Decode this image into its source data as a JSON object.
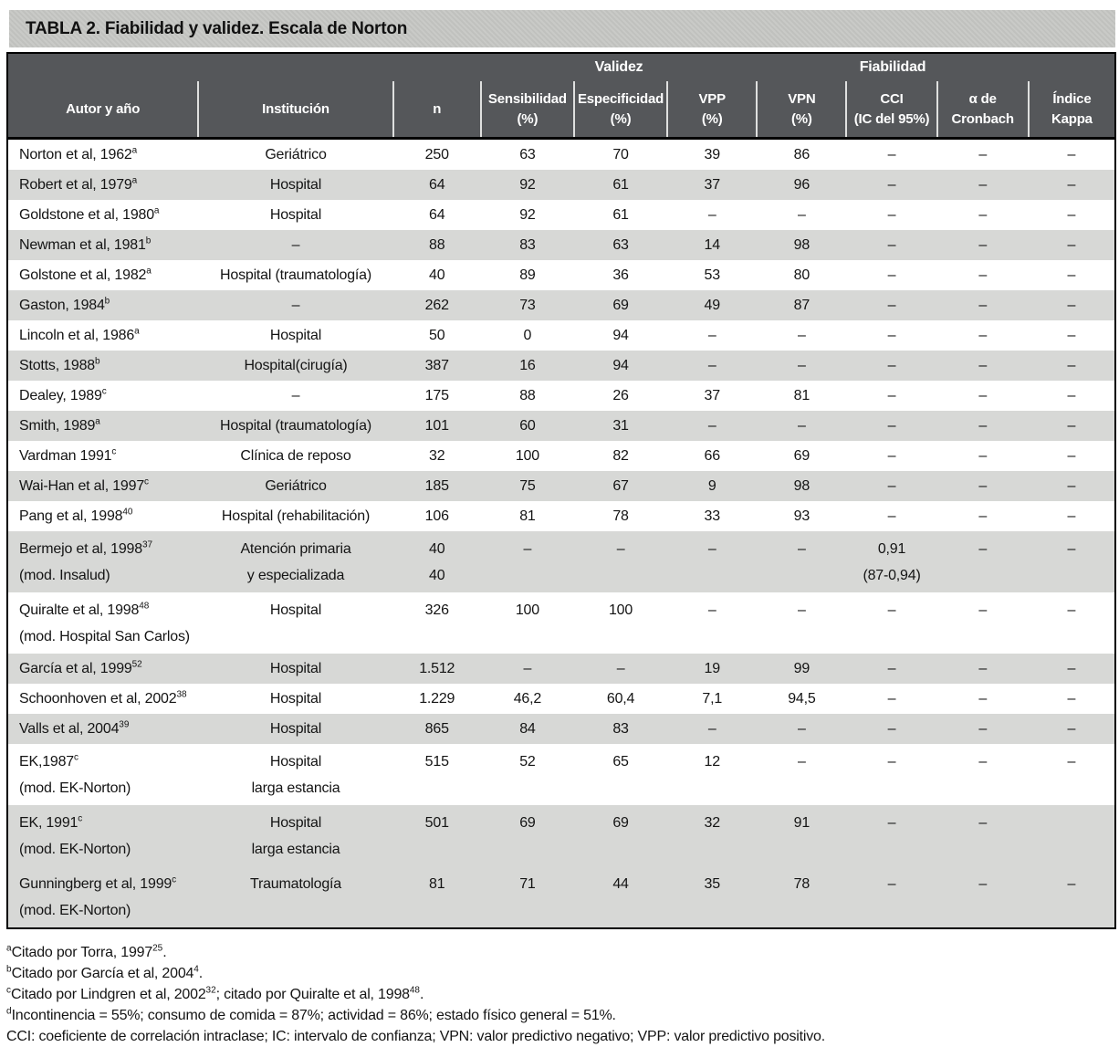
{
  "title": "TABLA 2. Fiabilidad y validez. Escala de Norton",
  "colors": {
    "title_bar_bg": "#c6c7c4",
    "header_bg": "#55575a",
    "header_text": "#ffffff",
    "row_shade": "#d7d8d6",
    "border": "#000000",
    "body_text": "#141414"
  },
  "table": {
    "group_headers": [
      {
        "label": "",
        "span": 3
      },
      {
        "label": "Validez",
        "span": 3
      },
      {
        "label": "Fiabilidad",
        "span": 3
      },
      {
        "label": "",
        "span": 1
      }
    ],
    "columns": [
      {
        "id": "author",
        "lines": [
          "Autor y año"
        ]
      },
      {
        "id": "institucion",
        "lines": [
          "Institución"
        ]
      },
      {
        "id": "n",
        "lines": [
          "n"
        ]
      },
      {
        "id": "sensibilidad",
        "lines": [
          "Sensibilidad",
          "(%)"
        ]
      },
      {
        "id": "especificidad",
        "lines": [
          "Especificidad",
          "(%)"
        ]
      },
      {
        "id": "vpp",
        "lines": [
          "VPP",
          "(%)"
        ]
      },
      {
        "id": "vpn",
        "lines": [
          "VPN",
          "(%)"
        ]
      },
      {
        "id": "cci",
        "lines": [
          "CCI",
          "(IC del 95%)"
        ]
      },
      {
        "id": "cronbach",
        "lines": [
          "α de",
          "Cronbach"
        ]
      },
      {
        "id": "kappa",
        "lines": [
          "Índice",
          "Kappa"
        ]
      }
    ],
    "rows": [
      {
        "shaded": false,
        "two_line": false,
        "author": [
          "Norton et al, 1962^{a}"
        ],
        "institution": [
          "Geriátrico"
        ],
        "cells": [
          [
            "250"
          ],
          [
            "63"
          ],
          [
            "70"
          ],
          [
            "39"
          ],
          [
            "86"
          ],
          [
            "–"
          ],
          [
            "–"
          ],
          [
            "–"
          ]
        ]
      },
      {
        "shaded": true,
        "two_line": false,
        "author": [
          "Robert et al, 1979^{a}"
        ],
        "institution": [
          "Hospital"
        ],
        "cells": [
          [
            "64"
          ],
          [
            "92"
          ],
          [
            "61"
          ],
          [
            "37"
          ],
          [
            "96"
          ],
          [
            "–"
          ],
          [
            "–"
          ],
          [
            "–"
          ]
        ]
      },
      {
        "shaded": false,
        "two_line": false,
        "author": [
          "Goldstone et al, 1980^{a}"
        ],
        "institution": [
          "Hospital"
        ],
        "cells": [
          [
            "64"
          ],
          [
            "92"
          ],
          [
            "61"
          ],
          [
            "–"
          ],
          [
            "–"
          ],
          [
            "–"
          ],
          [
            "–"
          ],
          [
            "–"
          ]
        ]
      },
      {
        "shaded": true,
        "two_line": false,
        "author": [
          "Newman et al, 1981^{b}"
        ],
        "institution": [
          "–"
        ],
        "cells": [
          [
            "88"
          ],
          [
            "83"
          ],
          [
            "63"
          ],
          [
            "14"
          ],
          [
            "98"
          ],
          [
            "–"
          ],
          [
            "–"
          ],
          [
            "–"
          ]
        ]
      },
      {
        "shaded": false,
        "two_line": false,
        "author": [
          "Golstone et al, 1982^{a}"
        ],
        "institution": [
          "Hospital (traumatología)"
        ],
        "cells": [
          [
            "40"
          ],
          [
            "89"
          ],
          [
            "36"
          ],
          [
            "53"
          ],
          [
            "80"
          ],
          [
            "–"
          ],
          [
            "–"
          ],
          [
            "–"
          ]
        ]
      },
      {
        "shaded": true,
        "two_line": false,
        "author": [
          "Gaston, 1984^{b}"
        ],
        "institution": [
          "–"
        ],
        "cells": [
          [
            "262"
          ],
          [
            "73"
          ],
          [
            "69"
          ],
          [
            "49"
          ],
          [
            "87"
          ],
          [
            "–"
          ],
          [
            "–"
          ],
          [
            "–"
          ]
        ]
      },
      {
        "shaded": false,
        "two_line": false,
        "author": [
          "Lincoln et al, 1986^{a}"
        ],
        "institution": [
          "Hospital"
        ],
        "cells": [
          [
            "50"
          ],
          [
            "0"
          ],
          [
            "94"
          ],
          [
            "–"
          ],
          [
            "–"
          ],
          [
            "–"
          ],
          [
            "–"
          ],
          [
            "–"
          ]
        ]
      },
      {
        "shaded": true,
        "two_line": false,
        "author": [
          "Stotts, 1988^{b}"
        ],
        "institution": [
          "Hospital(cirugía)"
        ],
        "cells": [
          [
            "387"
          ],
          [
            "16"
          ],
          [
            "94"
          ],
          [
            "–"
          ],
          [
            "–"
          ],
          [
            "–"
          ],
          [
            "–"
          ],
          [
            "–"
          ]
        ]
      },
      {
        "shaded": false,
        "two_line": false,
        "author": [
          "Dealey, 1989^{c}"
        ],
        "institution": [
          "–"
        ],
        "cells": [
          [
            "175"
          ],
          [
            "88"
          ],
          [
            "26"
          ],
          [
            "37"
          ],
          [
            "81"
          ],
          [
            "–"
          ],
          [
            "–"
          ],
          [
            "–"
          ]
        ]
      },
      {
        "shaded": true,
        "two_line": false,
        "author": [
          "Smith, 1989^{a}"
        ],
        "institution": [
          "Hospital (traumatología)"
        ],
        "cells": [
          [
            "101"
          ],
          [
            "60"
          ],
          [
            "31"
          ],
          [
            "–"
          ],
          [
            "–"
          ],
          [
            "–"
          ],
          [
            "–"
          ],
          [
            "–"
          ]
        ]
      },
      {
        "shaded": false,
        "two_line": false,
        "author": [
          "Vardman 1991^{c}"
        ],
        "institution": [
          "Clínica de reposo"
        ],
        "cells": [
          [
            "32"
          ],
          [
            "100"
          ],
          [
            "82"
          ],
          [
            "66"
          ],
          [
            "69"
          ],
          [
            "–"
          ],
          [
            "–"
          ],
          [
            "–"
          ]
        ]
      },
      {
        "shaded": true,
        "two_line": false,
        "author": [
          "Wai-Han et al, 1997^{c}"
        ],
        "institution": [
          "Geriátrico"
        ],
        "cells": [
          [
            "185"
          ],
          [
            "75"
          ],
          [
            "67"
          ],
          [
            "9"
          ],
          [
            "98"
          ],
          [
            "–"
          ],
          [
            "–"
          ],
          [
            "–"
          ]
        ]
      },
      {
        "shaded": false,
        "two_line": false,
        "author": [
          "Pang et al, 1998^{40}"
        ],
        "institution": [
          "Hospital (rehabilitación)"
        ],
        "cells": [
          [
            "106"
          ],
          [
            "81"
          ],
          [
            "78"
          ],
          [
            "33"
          ],
          [
            "93"
          ],
          [
            "–"
          ],
          [
            "–"
          ],
          [
            "–"
          ]
        ]
      },
      {
        "shaded": true,
        "two_line": true,
        "author": [
          "Bermejo et al, 1998^{37}",
          "(mod. Insalud)"
        ],
        "institution": [
          "Atención primaria",
          "y especializada"
        ],
        "cells": [
          [
            "40",
            "40"
          ],
          [
            "–"
          ],
          [
            "–"
          ],
          [
            "–"
          ],
          [
            "–"
          ],
          [
            "0,91",
            "(87-0,94)"
          ],
          [
            "–"
          ],
          [
            "–"
          ]
        ]
      },
      {
        "shaded": false,
        "two_line": true,
        "author": [
          "Quiralte et al, 1998^{48}",
          "(mod. Hospital San Carlos)"
        ],
        "institution": [
          "Hospital"
        ],
        "cells": [
          [
            "326"
          ],
          [
            "100"
          ],
          [
            "100"
          ],
          [
            "–"
          ],
          [
            "–"
          ],
          [
            "–"
          ],
          [
            "–"
          ],
          [
            "–"
          ]
        ]
      },
      {
        "shaded": true,
        "two_line": false,
        "author": [
          "García et al, 1999^{52}"
        ],
        "institution": [
          "Hospital"
        ],
        "cells": [
          [
            "1.512"
          ],
          [
            "–"
          ],
          [
            "–"
          ],
          [
            "19"
          ],
          [
            "99"
          ],
          [
            "–"
          ],
          [
            "–"
          ],
          [
            "–"
          ]
        ]
      },
      {
        "shaded": false,
        "two_line": false,
        "author": [
          "Schoonhoven et al, 2002^{38}"
        ],
        "institution": [
          "Hospital"
        ],
        "cells": [
          [
            "1.229"
          ],
          [
            "46,2"
          ],
          [
            "60,4"
          ],
          [
            "7,1"
          ],
          [
            "94,5"
          ],
          [
            "–"
          ],
          [
            "–"
          ],
          [
            "–"
          ]
        ]
      },
      {
        "shaded": true,
        "two_line": false,
        "author": [
          "Valls et al, 2004^{39}"
        ],
        "institution": [
          "Hospital"
        ],
        "cells": [
          [
            "865"
          ],
          [
            "84"
          ],
          [
            "83"
          ],
          [
            "–"
          ],
          [
            "–"
          ],
          [
            "–"
          ],
          [
            "–"
          ],
          [
            "–"
          ]
        ]
      },
      {
        "shaded": false,
        "two_line": true,
        "author": [
          "EK,1987^{c}",
          "(mod. EK-Norton)"
        ],
        "institution": [
          "Hospital",
          "larga estancia"
        ],
        "cells": [
          [
            "515"
          ],
          [
            "52"
          ],
          [
            "65"
          ],
          [
            "12"
          ],
          [
            "–"
          ],
          [
            "–"
          ],
          [
            "–"
          ],
          [
            "–"
          ]
        ]
      },
      {
        "shaded": true,
        "two_line": true,
        "author": [
          "EK, 1991^{c}",
          "(mod. EK-Norton)"
        ],
        "institution": [
          "Hospital",
          "larga estancia"
        ],
        "cells": [
          [
            "501"
          ],
          [
            "69"
          ],
          [
            "69"
          ],
          [
            "32"
          ],
          [
            "91"
          ],
          [
            "–"
          ],
          [
            "–"
          ],
          [
            ""
          ]
        ]
      },
      {
        "shaded": true,
        "two_line": true,
        "author": [
          "Gunningberg et al, 1999^{c}",
          "(mod. EK-Norton)"
        ],
        "institution": [
          "Traumatología"
        ],
        "cells": [
          [
            "81"
          ],
          [
            "71"
          ],
          [
            "44"
          ],
          [
            "35"
          ],
          [
            "78"
          ],
          [
            "–"
          ],
          [
            "–"
          ],
          [
            "–"
          ]
        ]
      }
    ]
  },
  "footnotes": [
    "^{a}Citado por Torra, 1997^{25}.",
    "^{b}Citado por García et al, 2004^{4}.",
    "^{c}Citado por Lindgren et al, 2002^{32}; citado por Quiralte et al, 1998^{48}.",
    "^{d}Incontinencia = 55%; consumo de comida = 87%; actividad = 86%; estado físico general = 51%.",
    "CCI: coeficiente de correlación intraclase; IC: intervalo de confianza; VPN: valor predictivo negativo; VPP: valor predictivo positivo."
  ]
}
